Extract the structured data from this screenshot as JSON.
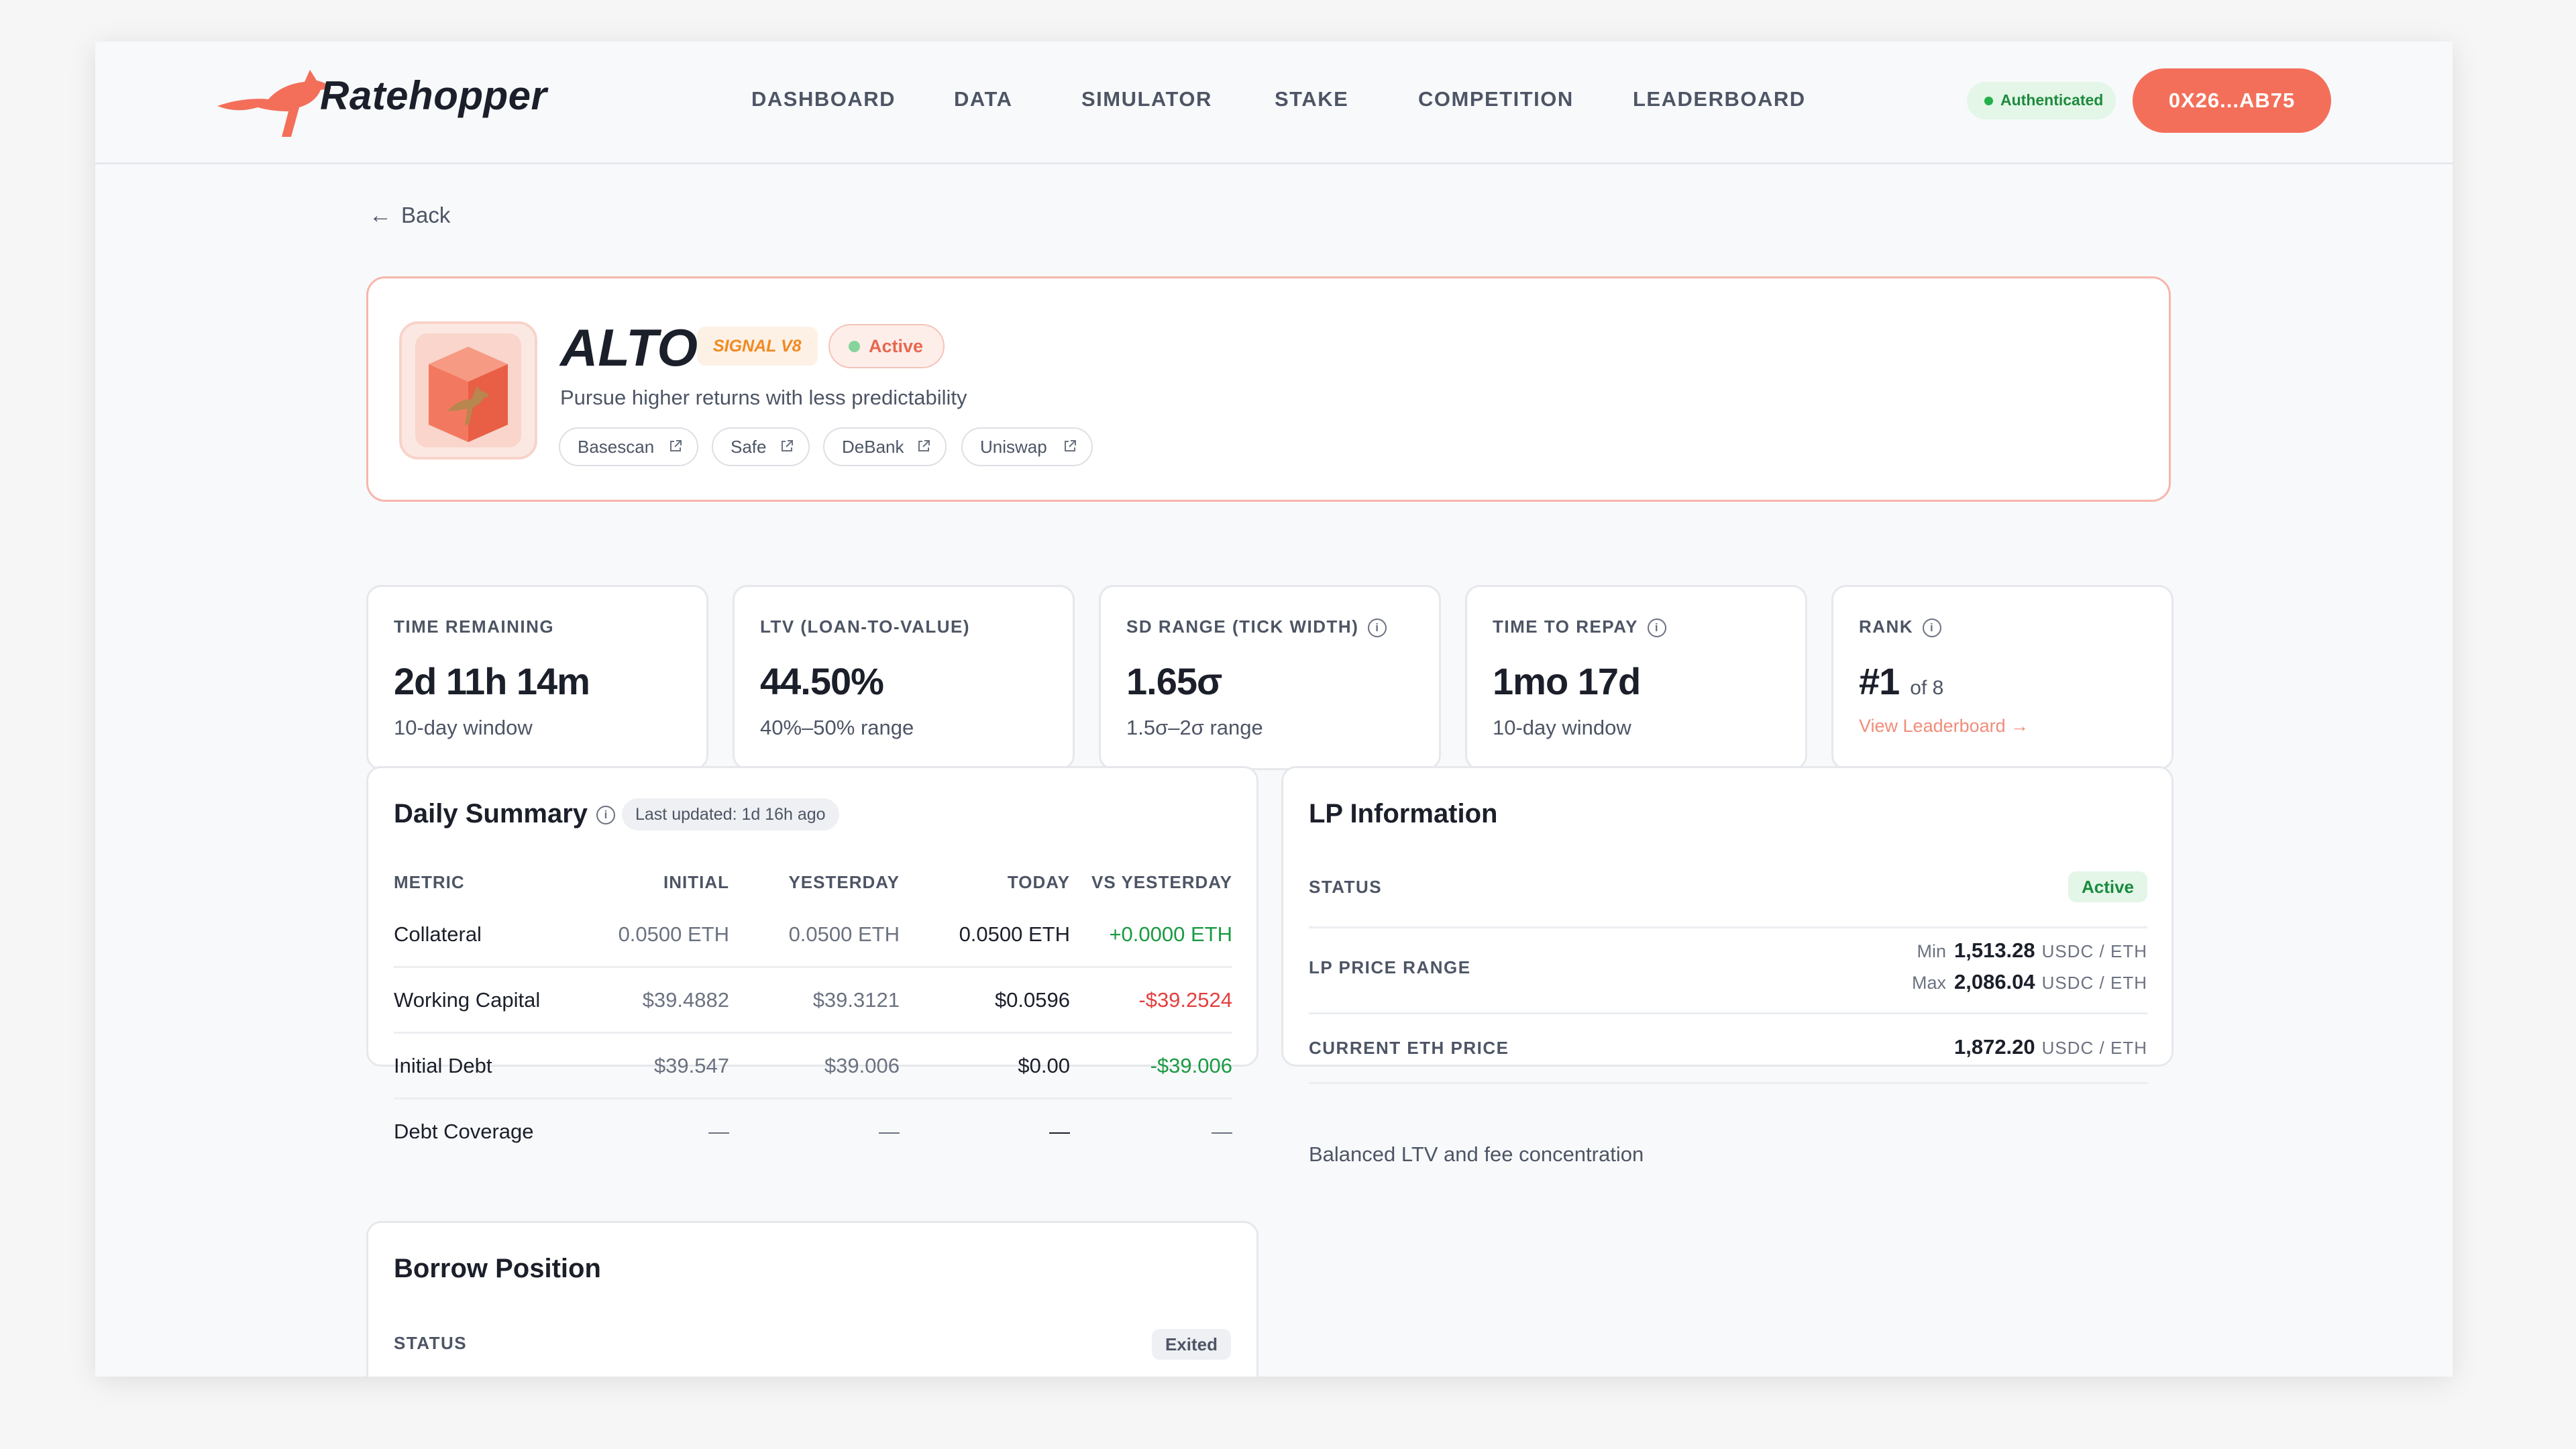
{
  "brand": {
    "name": "Ratehopper",
    "accent": "#f36f5a"
  },
  "nav": [
    "DASHBOARD",
    "DATA",
    "SIMULATOR",
    "STAKE",
    "COMPETITION",
    "LEADERBOARD"
  ],
  "auth": {
    "label": "Authenticated",
    "color": "#22b04b"
  },
  "wallet": {
    "address": "0X26...AB75"
  },
  "back": {
    "label": "Back"
  },
  "strategy": {
    "name": "ALTO",
    "signal": "SIGNAL V8",
    "status": "Active",
    "description": "Pursue higher returns with less predictability",
    "links": [
      "Basescan",
      "Safe",
      "DeBank",
      "Uniswap"
    ],
    "avatar_icon": "kangaroo-cube-icon"
  },
  "stats": [
    {
      "label": "TIME REMAINING",
      "value": "2d 11h 14m",
      "sub": "10-day window"
    },
    {
      "label": "LTV (LOAN-TO-VALUE)",
      "value": "44.50%",
      "sub": "40%–50% range"
    },
    {
      "label": "SD RANGE (TICK WIDTH)",
      "value": "1.65σ",
      "sub": "1.5σ–2σ range"
    },
    {
      "label": "TIME TO REPAY",
      "value": "1mo 17d",
      "sub": "10-day window"
    },
    {
      "label": "RANK",
      "value": "#1",
      "of": "of 8",
      "link": "View Leaderboard →"
    }
  ],
  "daily_summary": {
    "title": "Daily Summary",
    "updated": "Last updated: 1d 16h ago",
    "columns": [
      "METRIC",
      "INITIAL",
      "YESTERDAY",
      "TODAY",
      "VS YESTERDAY"
    ],
    "rows": [
      {
        "metric": "Collateral",
        "initial": "0.0500 ETH",
        "yesterday": "0.0500 ETH",
        "today": "0.0500 ETH",
        "vs": "+0.0000 ETH",
        "vs_tone": "pos"
      },
      {
        "metric": "Working Capital",
        "initial": "$39.4882",
        "yesterday": "$39.3121",
        "today": "$0.0596",
        "vs": "-$39.2524",
        "vs_tone": "neg"
      },
      {
        "metric": "Initial Debt",
        "initial": "$39.547",
        "yesterday": "$39.006",
        "today": "$0.00",
        "vs": "-$39.006",
        "vs_tone": "pos"
      },
      {
        "metric": "Debt Coverage",
        "initial": "—",
        "yesterday": "—",
        "today": "—",
        "vs": "—",
        "vs_tone": ""
      }
    ]
  },
  "lp_info": {
    "title": "LP Information",
    "status_label": "STATUS",
    "status": "Active",
    "range_label": "LP PRICE RANGE",
    "min_label": "Min",
    "min": "1,513.28",
    "max_label": "Max",
    "max": "2,086.04",
    "unit": "USDC / ETH",
    "eth_price_label": "CURRENT ETH PRICE",
    "eth_price": "1,872.20",
    "note": "Balanced LTV and fee concentration"
  },
  "borrow": {
    "title": "Borrow Position",
    "status_label": "STATUS",
    "status": "Exited"
  }
}
